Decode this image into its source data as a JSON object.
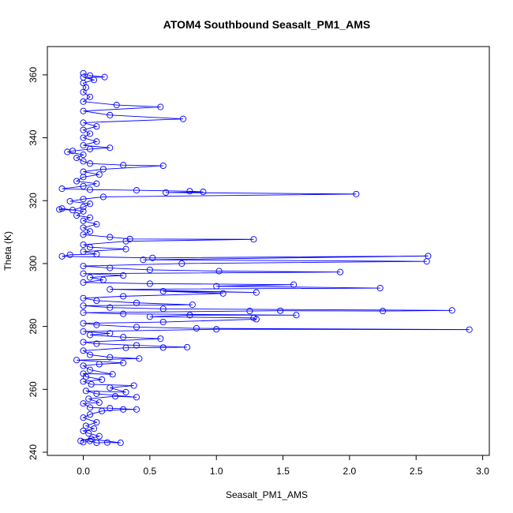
{
  "chart_data": {
    "type": "scatter",
    "title": "ATOM4 Southbound Seasalt_PM1_AMS",
    "xlabel": "Seasalt_PM1_AMS",
    "ylabel": "Theta (K)",
    "xlim": [
      -0.27,
      3.05
    ],
    "ylim": [
      239,
      369
    ],
    "x_ticks": [
      0.0,
      0.5,
      1.0,
      1.5,
      2.0,
      2.5,
      3.0
    ],
    "x_tick_labels": [
      "0.0",
      "0.5",
      "1.0",
      "1.5",
      "2.0",
      "2.5",
      "3.0"
    ],
    "y_ticks": [
      240,
      260,
      280,
      300,
      320,
      340,
      360
    ],
    "y_tick_labels": [
      "240",
      "260",
      "280",
      "300",
      "320",
      "340",
      "360"
    ],
    "grid": false,
    "color": "#0000ff",
    "marker": "open-circle",
    "connected": true,
    "series": [
      {
        "points": [
          [
            0.0,
            243.2
          ],
          [
            0.05,
            243.6
          ],
          [
            0.1,
            243.0
          ],
          [
            0.18,
            243.1
          ],
          [
            0.28,
            243.0
          ],
          [
            0.06,
            244.2
          ],
          [
            -0.02,
            243.6
          ],
          [
            0.12,
            245.1
          ],
          [
            0.04,
            246.0
          ],
          [
            0.0,
            246.8
          ],
          [
            0.08,
            247.5
          ],
          [
            0.02,
            248.4
          ],
          [
            0.1,
            249.5
          ],
          [
            0.0,
            251.0
          ],
          [
            0.05,
            252.0
          ],
          [
            0.14,
            253.1
          ],
          [
            0.3,
            253.6
          ],
          [
            0.4,
            253.6
          ],
          [
            0.2,
            254.0
          ],
          [
            0.05,
            254.2
          ],
          [
            0.0,
            255.5
          ],
          [
            0.12,
            255.8
          ],
          [
            0.04,
            257.0
          ],
          [
            0.24,
            257.8
          ],
          [
            0.4,
            257.5
          ],
          [
            0.1,
            258.6
          ],
          [
            0.02,
            259.5
          ],
          [
            0.32,
            259.1
          ],
          [
            0.2,
            260.5
          ],
          [
            0.38,
            261.2
          ],
          [
            0.06,
            261.6
          ],
          [
            0.0,
            262.5
          ],
          [
            0.14,
            263.1
          ],
          [
            0.02,
            264.0
          ],
          [
            0.0,
            265.0
          ],
          [
            0.22,
            264.8
          ],
          [
            0.05,
            266.2
          ],
          [
            0.0,
            267.5
          ],
          [
            0.12,
            268.0
          ],
          [
            0.3,
            268.4
          ],
          [
            -0.05,
            269.3
          ],
          [
            0.42,
            269.8
          ],
          [
            0.2,
            270.2
          ],
          [
            0.05,
            271.0
          ],
          [
            0.0,
            272.3
          ],
          [
            0.32,
            273.2
          ],
          [
            0.6,
            273.3
          ],
          [
            0.78,
            273.4
          ],
          [
            0.4,
            274.0
          ],
          [
            0.1,
            274.5
          ],
          [
            0.0,
            275.0
          ],
          [
            0.58,
            276.1
          ],
          [
            0.3,
            276.6
          ],
          [
            0.05,
            277.3
          ],
          [
            0.2,
            277.8
          ],
          [
            0.0,
            278.4
          ],
          [
            1.0,
            279.1
          ],
          [
            2.9,
            279.0
          ],
          [
            0.85,
            279.4
          ],
          [
            0.4,
            279.8
          ],
          [
            0.1,
            280.5
          ],
          [
            0.0,
            281.0
          ],
          [
            0.6,
            281.4
          ],
          [
            1.3,
            282.3
          ],
          [
            1.28,
            282.7
          ],
          [
            0.5,
            283.1
          ],
          [
            0.8,
            283.6
          ],
          [
            1.6,
            283.6
          ],
          [
            0.3,
            284.0
          ],
          [
            0.0,
            284.4
          ],
          [
            1.25,
            284.9
          ],
          [
            1.48,
            285.0
          ],
          [
            2.25,
            284.9
          ],
          [
            2.77,
            285.1
          ],
          [
            0.6,
            285.6
          ],
          [
            0.2,
            286.0
          ],
          [
            0.0,
            286.6
          ],
          [
            0.82,
            286.9
          ],
          [
            0.4,
            287.5
          ],
          [
            0.1,
            288.2
          ],
          [
            0.0,
            289.0
          ],
          [
            0.3,
            289.6
          ],
          [
            1.05,
            290.5
          ],
          [
            0.6,
            291.2
          ],
          [
            1.3,
            290.8
          ],
          [
            0.2,
            291.8
          ],
          [
            2.23,
            292.2
          ],
          [
            1.0,
            292.8
          ],
          [
            1.58,
            293.3
          ],
          [
            0.5,
            293.6
          ],
          [
            0.0,
            294.0
          ],
          [
            0.15,
            294.8
          ],
          [
            0.05,
            295.6
          ],
          [
            0.3,
            296.2
          ],
          [
            0.0,
            296.8
          ],
          [
            1.93,
            297.3
          ],
          [
            1.02,
            297.6
          ],
          [
            0.5,
            298.0
          ],
          [
            0.2,
            298.6
          ],
          [
            0.0,
            299.2
          ],
          [
            0.74,
            300.0
          ],
          [
            2.58,
            300.7
          ],
          [
            0.45,
            301.2
          ],
          [
            2.59,
            302.4
          ],
          [
            0.52,
            301.8
          ],
          [
            -0.16,
            302.3
          ],
          [
            -0.1,
            302.8
          ],
          [
            0.1,
            303.0
          ],
          [
            0.0,
            303.8
          ],
          [
            0.32,
            304.6
          ],
          [
            0.05,
            305.2
          ],
          [
            0.0,
            306.0
          ],
          [
            0.32,
            307.1
          ],
          [
            1.28,
            307.7
          ],
          [
            0.35,
            307.8
          ],
          [
            0.2,
            308.4
          ],
          [
            0.0,
            309.2
          ],
          [
            0.05,
            310.2
          ],
          [
            0.0,
            311.4
          ],
          [
            0.1,
            312.5
          ],
          [
            0.0,
            313.6
          ],
          [
            0.05,
            314.6
          ],
          [
            -0.05,
            315.3
          ],
          [
            0.0,
            316.6
          ],
          [
            -0.16,
            317.5
          ],
          [
            -0.18,
            317.2
          ],
          [
            -0.08,
            317.0
          ],
          [
            0.0,
            318.0
          ],
          [
            0.05,
            319.0
          ],
          [
            -0.1,
            319.8
          ],
          [
            0.0,
            320.5
          ],
          [
            0.15,
            321.2
          ],
          [
            2.05,
            322.1
          ],
          [
            0.62,
            322.6
          ],
          [
            0.9,
            322.8
          ],
          [
            0.8,
            323.0
          ],
          [
            0.4,
            323.3
          ],
          [
            0.05,
            323.5
          ],
          [
            -0.16,
            323.8
          ],
          [
            0.0,
            324.6
          ],
          [
            0.1,
            325.4
          ],
          [
            -0.05,
            326.2
          ],
          [
            0.0,
            327.5
          ],
          [
            0.12,
            328.3
          ],
          [
            0.0,
            329.2
          ],
          [
            0.15,
            330.0
          ],
          [
            0.6,
            331.1
          ],
          [
            0.3,
            331.3
          ],
          [
            0.05,
            331.8
          ],
          [
            0.0,
            332.5
          ],
          [
            -0.05,
            333.6
          ],
          [
            0.0,
            334.6
          ],
          [
            -0.12,
            335.5
          ],
          [
            -0.08,
            335.8
          ],
          [
            0.05,
            336.4
          ],
          [
            0.2,
            336.8
          ],
          [
            0.0,
            337.6
          ],
          [
            0.1,
            338.8
          ],
          [
            0.0,
            340.0
          ],
          [
            0.05,
            341.3
          ],
          [
            0.0,
            342.5
          ],
          [
            0.1,
            343.6
          ],
          [
            0.0,
            344.8
          ],
          [
            0.75,
            346.0
          ],
          [
            0.2,
            347.2
          ],
          [
            0.0,
            348.5
          ],
          [
            0.58,
            349.8
          ],
          [
            0.25,
            350.4
          ],
          [
            0.0,
            351.5
          ],
          [
            0.05,
            353.0
          ],
          [
            0.0,
            354.5
          ],
          [
            0.02,
            356.0
          ],
          [
            0.0,
            357.4
          ],
          [
            0.08,
            358.4
          ],
          [
            0.0,
            359.2
          ],
          [
            0.16,
            359.3
          ],
          [
            0.05,
            359.8
          ],
          [
            0.0,
            360.5
          ]
        ]
      }
    ]
  }
}
